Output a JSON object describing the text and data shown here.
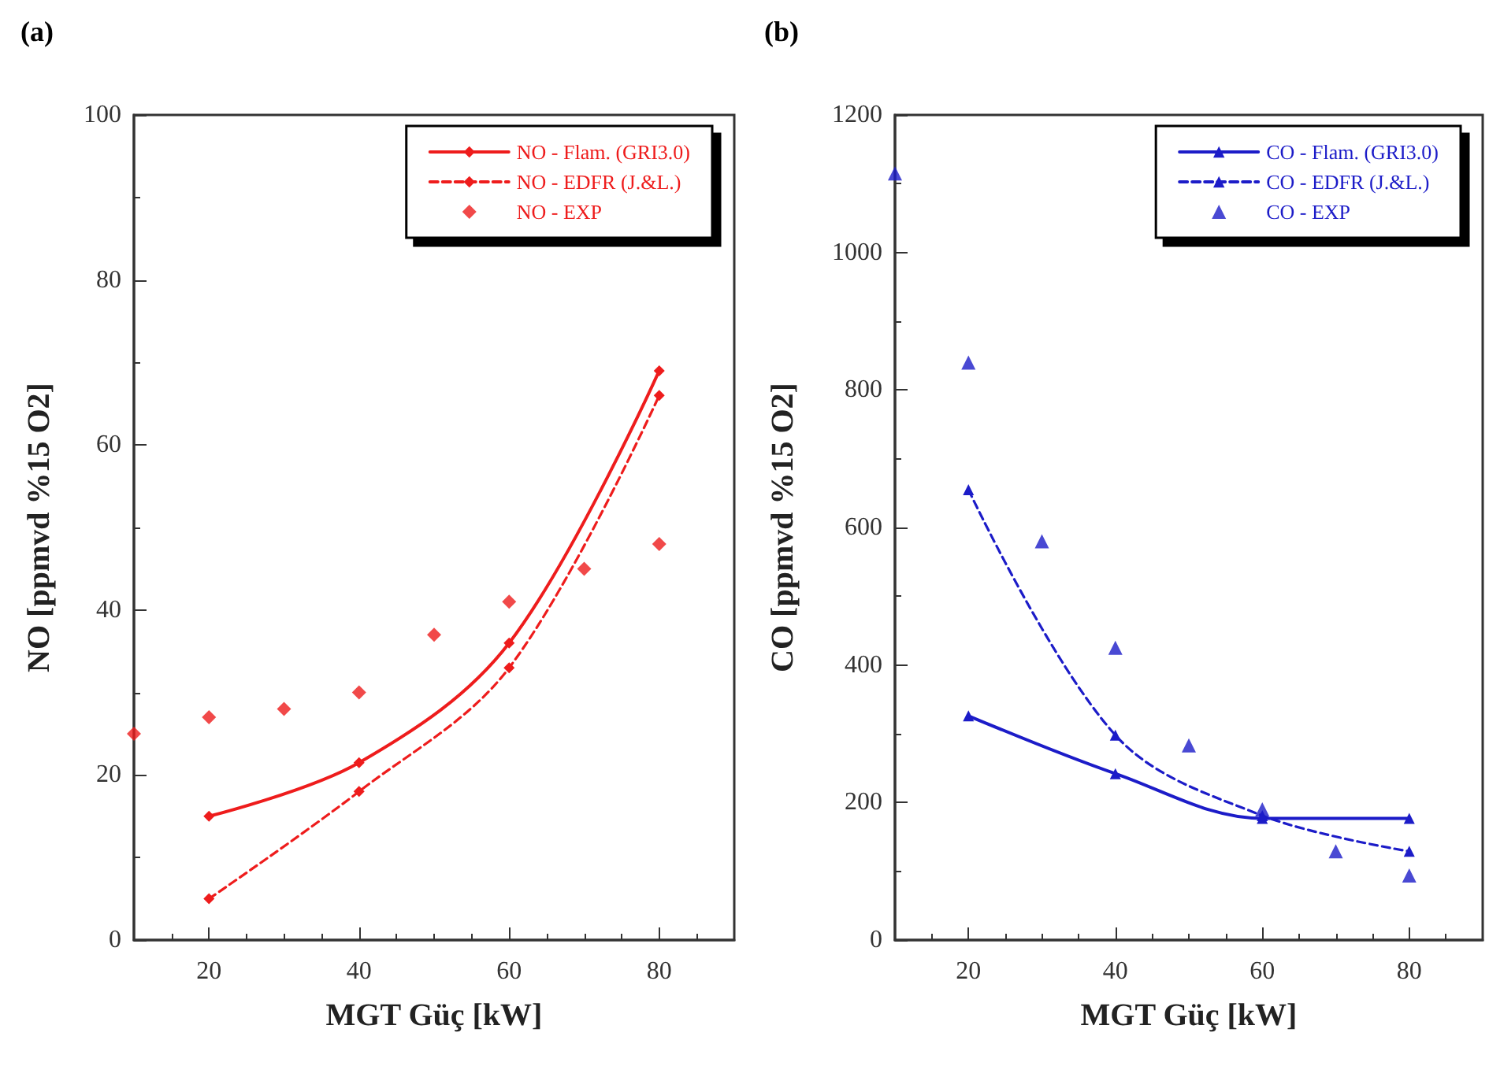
{
  "chart_data": [
    {
      "type": "line",
      "title": "(a)",
      "xlabel": "MGT Güç [kW]",
      "ylabel": "NO [ppmvd %15 O2]",
      "xlim": [
        10,
        90
      ],
      "xticks": [
        20,
        40,
        60,
        80
      ],
      "ylim": [
        0,
        100
      ],
      "yticks": [
        0,
        20,
        40,
        60,
        80,
        100
      ],
      "grid": false,
      "legend": "top right",
      "series": [
        {
          "name": "NO - Flam. (GRI3.0)",
          "color": "#ee1c1c",
          "marker": "diamond",
          "line_style": "solid",
          "x": [
            20,
            40,
            60,
            80
          ],
          "values": [
            15,
            21.5,
            36,
            69
          ]
        },
        {
          "name": "NO - EDFR (J.&L.)",
          "color": "#ee1c1c",
          "marker": "diamond",
          "line_style": "dashed",
          "x": [
            20,
            40,
            60,
            80
          ],
          "values": [
            5,
            18,
            33,
            66
          ]
        },
        {
          "name": "NO - EXP",
          "type": "scatter",
          "color": "#ee1c1c",
          "marker": "diamond",
          "x": [
            10,
            20,
            30,
            40,
            50,
            60,
            70,
            80
          ],
          "values": [
            25,
            27,
            28,
            30,
            37,
            41,
            45,
            48
          ]
        }
      ]
    },
    {
      "type": "line",
      "title": "(b)",
      "xlabel": "MGT Güç [kW]",
      "ylabel": "CO [ppmvd %15 O2]",
      "xlim": [
        10,
        90
      ],
      "xticks": [
        20,
        40,
        60,
        80
      ],
      "ylim": [
        0,
        1200
      ],
      "yticks": [
        0,
        200,
        400,
        600,
        800,
        1000,
        1200
      ],
      "grid": false,
      "legend": "top right",
      "series": [
        {
          "name": "CO - Flam. (GRI3.0)",
          "color": "#1c1cc8",
          "marker": "triangle",
          "line_style": "solid",
          "x": [
            20,
            40,
            60,
            80
          ],
          "values": [
            326,
            242,
            177,
            177
          ]
        },
        {
          "name": "CO - EDFR (J.&L.)",
          "color": "#1c1cc8",
          "marker": "triangle",
          "line_style": "dashed",
          "x": [
            20,
            40,
            60,
            80
          ],
          "values": [
            655,
            298,
            181,
            129
          ]
        },
        {
          "name": "CO - EXP",
          "type": "scatter",
          "color": "#1c1cc8",
          "marker": "triangle",
          "x": [
            10,
            20,
            30,
            40,
            50,
            60,
            70,
            80
          ],
          "values": [
            1115,
            840,
            580,
            425,
            283,
            190,
            129,
            94
          ]
        }
      ]
    }
  ]
}
